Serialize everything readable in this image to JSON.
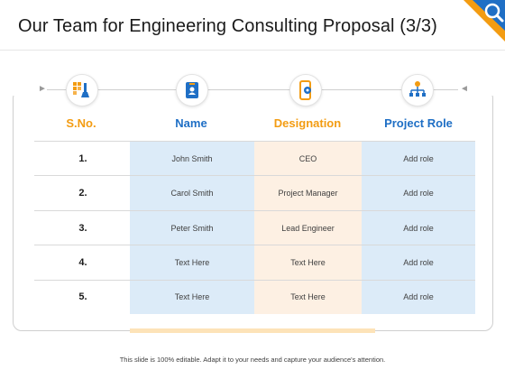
{
  "title": "Our Team for Engineering Consulting Proposal (3/3)",
  "colors": {
    "accent_orange": "#f39c12",
    "accent_blue": "#1f6fc5",
    "name_col_bg": "#dcebf8",
    "designation_col_bg": "#fdf0e3",
    "role_col_bg": "#dcebf8"
  },
  "icons": [
    "tools-icon",
    "id-badge-icon",
    "mobile-settings-icon",
    "org-chart-gear-icon"
  ],
  "table": {
    "headers": {
      "sno": "S.No.",
      "name": "Name",
      "designation": "Designation",
      "role": "Project Role"
    },
    "rows": [
      {
        "sno": "1.",
        "name": "John Smith",
        "designation": "CEO",
        "role": "Add role"
      },
      {
        "sno": "2.",
        "name": "Carol Smith",
        "designation": "Project Manager",
        "role": "Add role"
      },
      {
        "sno": "3.",
        "name": "Peter Smith",
        "designation": "Lead Engineer",
        "role": "Add role"
      },
      {
        "sno": "4.",
        "name": "Text Here",
        "designation": "Text Here",
        "role": "Add role"
      },
      {
        "sno": "5.",
        "name": "Text Here",
        "designation": "Text Here",
        "role": "Add role"
      }
    ]
  },
  "footer": "This slide is 100% editable. Adapt it to your needs and capture your audience's attention."
}
